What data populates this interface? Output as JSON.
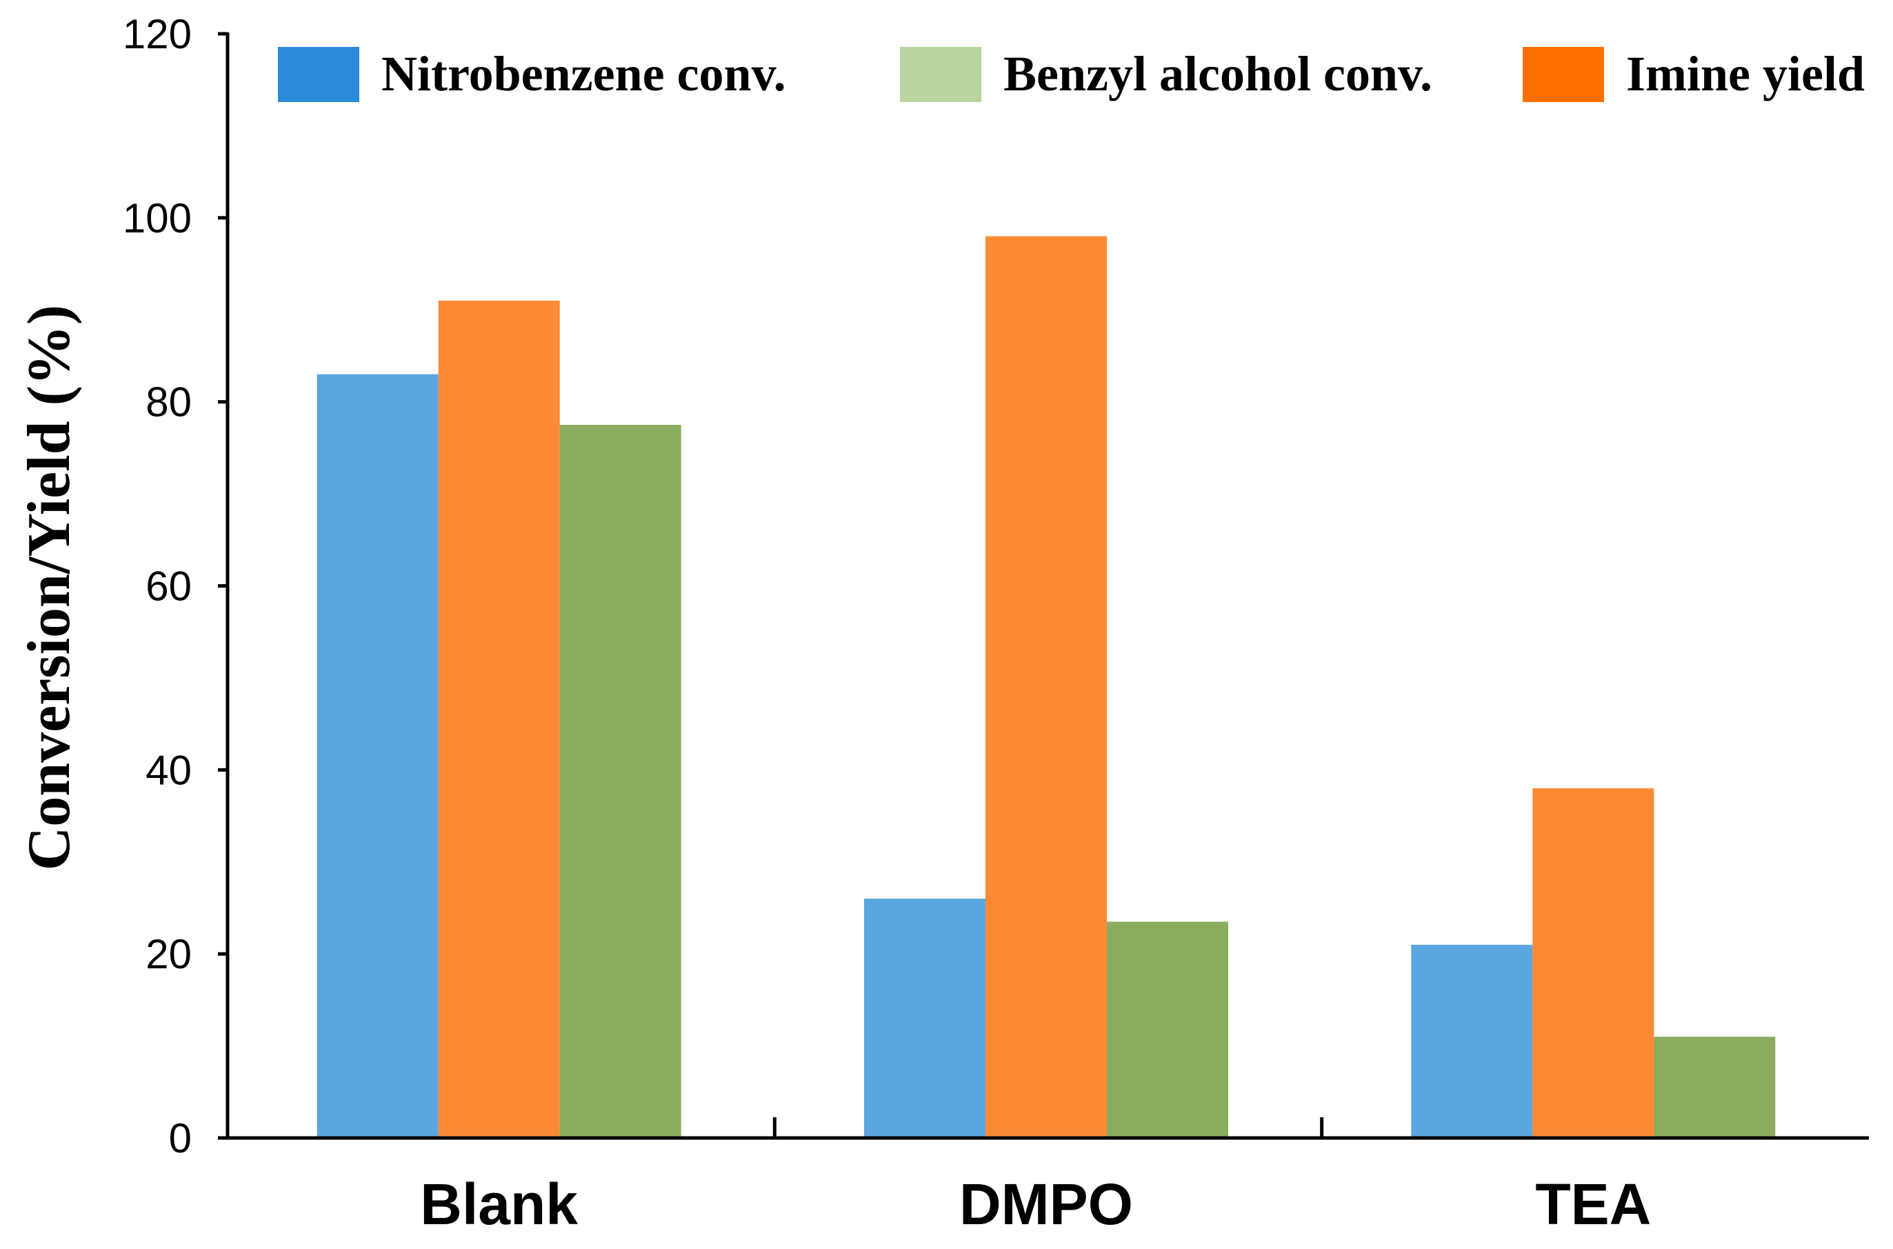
{
  "chart_data": {
    "type": "bar",
    "ylabel": "Conversion/Yield (%)",
    "xlabel": "",
    "ylim": [
      0,
      120
    ],
    "yticks": [
      0,
      20,
      40,
      60,
      80,
      100,
      120
    ],
    "categories": [
      "Blank",
      "DMPO",
      "TEA"
    ],
    "grid": false,
    "legend_position": "top",
    "series": [
      {
        "name": "Nitrobenzene conv.",
        "values": [
          83,
          26,
          21
        ],
        "color": "#5BA6DF",
        "legend_color": "#2A8BDB"
      },
      {
        "name": "Imine yield",
        "values": [
          91,
          98,
          38
        ],
        "color": "#FC8A35",
        "legend_color": "#FF6F00"
      },
      {
        "name": "Benzyl alcohol conv.",
        "values": [
          77.5,
          23.5,
          11
        ],
        "color": "#8AAC5E",
        "legend_color": "#B9D6A0"
      }
    ],
    "legend_order": [
      "Nitrobenzene conv.",
      "Benzyl alcohol conv.",
      "Imine yield"
    ]
  }
}
